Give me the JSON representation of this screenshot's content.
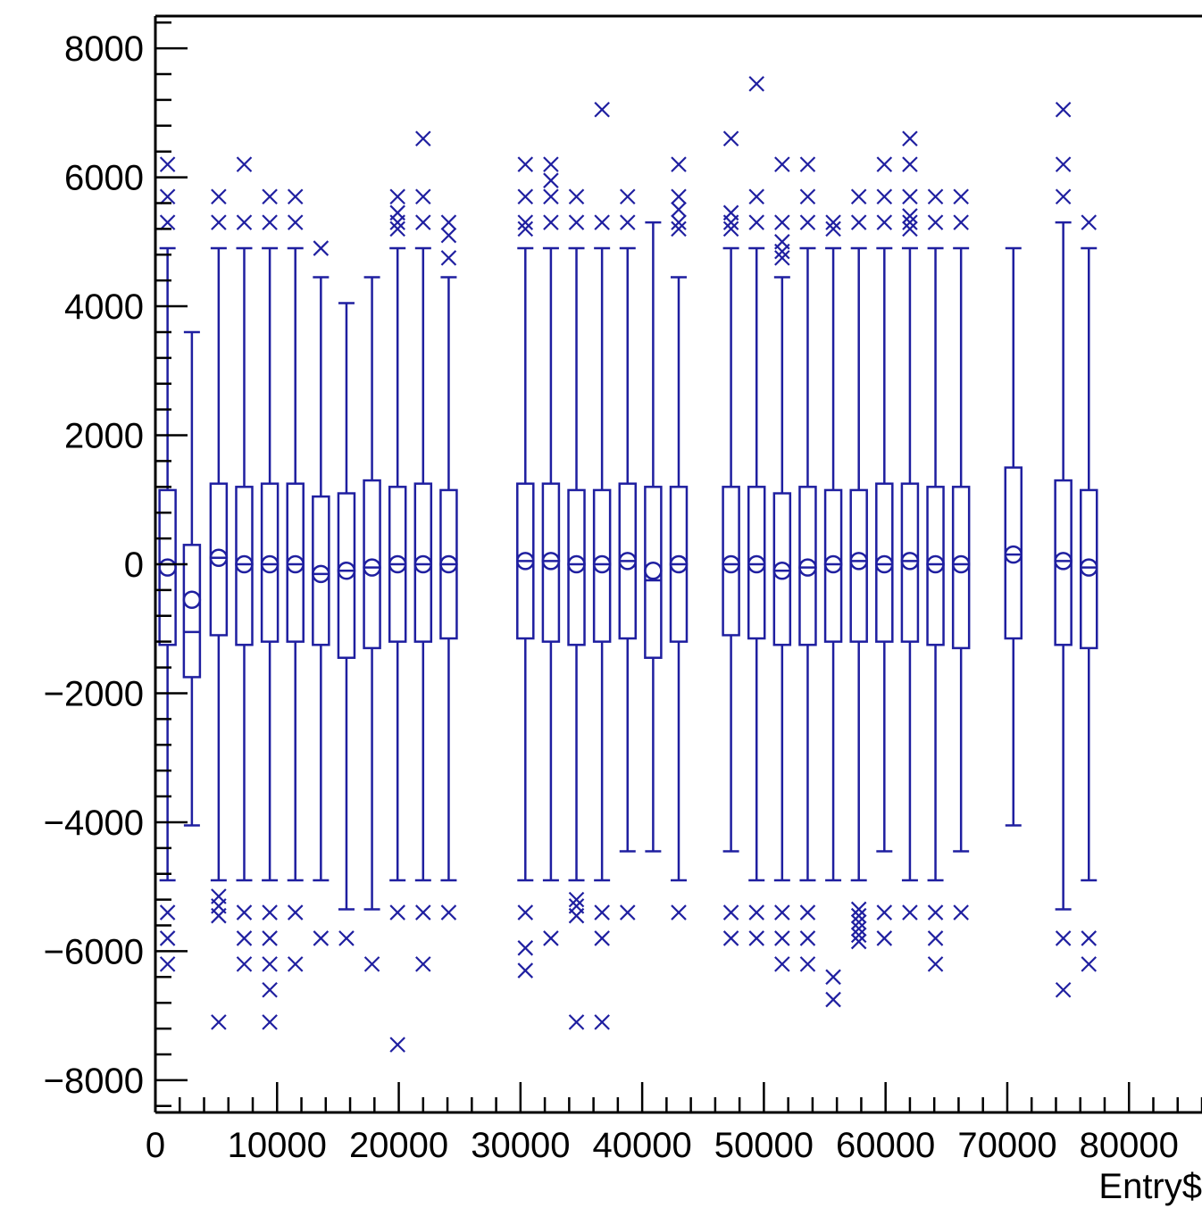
{
  "chart_data": {
    "type": "box",
    "xlabel": "Entry$",
    "ylabel": "",
    "xlim": [
      0,
      86000
    ],
    "ylim": [
      -8500,
      8500
    ],
    "x_ticks": [
      0,
      10000,
      20000,
      30000,
      40000,
      50000,
      60000,
      70000,
      80000
    ],
    "x_tick_labels": [
      "0",
      "10000",
      "20000",
      "30000",
      "40000",
      "50000",
      "60000",
      "70000",
      "80000"
    ],
    "y_ticks": [
      -8000,
      -6000,
      -4000,
      -2000,
      0,
      2000,
      4000,
      6000,
      8000
    ],
    "y_tick_labels": [
      "−8000",
      "−6000",
      "−4000",
      "−2000",
      "0",
      "2000",
      "4000",
      "6000",
      "8000"
    ],
    "grid": false,
    "colors": {
      "series": "#1f1fa0",
      "axis": "#000000",
      "background": "#ffffff"
    },
    "boxes": [
      {
        "x": 1000,
        "q1": -1250,
        "median": 0,
        "q3": 1150,
        "mean": -50,
        "whisker_low": -4900,
        "whisker_high": 4900,
        "outliers": [
          6200,
          5700,
          5300,
          -5400,
          -5800,
          -6200
        ]
      },
      {
        "x": 3000,
        "q1": -1750,
        "median": -1050,
        "q3": 300,
        "mean": -550,
        "whisker_low": -4050,
        "whisker_high": 3600,
        "outliers": []
      },
      {
        "x": 5200,
        "q1": -1100,
        "median": 100,
        "q3": 1250,
        "mean": 100,
        "whisker_low": -4900,
        "whisker_high": 4900,
        "outliers": [
          5700,
          5300,
          -5150,
          -5300,
          -5450,
          -7100
        ]
      },
      {
        "x": 7300,
        "q1": -1250,
        "median": 0,
        "q3": 1200,
        "mean": 0,
        "whisker_low": -4900,
        "whisker_high": 4900,
        "outliers": [
          6200,
          5300,
          -5400,
          -5800,
          -6200
        ]
      },
      {
        "x": 9400,
        "q1": -1200,
        "median": 0,
        "q3": 1250,
        "mean": 0,
        "whisker_low": -4900,
        "whisker_high": 4900,
        "outliers": [
          5700,
          5300,
          -5400,
          -5800,
          -6200,
          -6600,
          -7100
        ]
      },
      {
        "x": 11500,
        "q1": -1200,
        "median": 0,
        "q3": 1250,
        "mean": 0,
        "whisker_low": -4900,
        "whisker_high": 4900,
        "outliers": [
          5700,
          5300,
          -5400,
          -6200
        ]
      },
      {
        "x": 13600,
        "q1": -1250,
        "median": -150,
        "q3": 1050,
        "mean": -150,
        "whisker_low": -4900,
        "whisker_high": 4450,
        "outliers": [
          4900,
          -5800
        ]
      },
      {
        "x": 15700,
        "q1": -1450,
        "median": -100,
        "q3": 1100,
        "mean": -100,
        "whisker_low": -5350,
        "whisker_high": 4050,
        "outliers": [
          -5800
        ]
      },
      {
        "x": 17800,
        "q1": -1300,
        "median": -50,
        "q3": 1300,
        "mean": -50,
        "whisker_low": -5350,
        "whisker_high": 4450,
        "outliers": [
          -6200
        ]
      },
      {
        "x": 19900,
        "q1": -1200,
        "median": 0,
        "q3": 1200,
        "mean": 0,
        "whisker_low": -4900,
        "whisker_high": 4900,
        "outliers": [
          5700,
          5450,
          5300,
          5200,
          -5400,
          -7450
        ]
      },
      {
        "x": 22000,
        "q1": -1200,
        "median": 0,
        "q3": 1250,
        "mean": 0,
        "whisker_low": -4900,
        "whisker_high": 4900,
        "outliers": [
          6600,
          5700,
          5300,
          -5400,
          -6200
        ]
      },
      {
        "x": 24100,
        "q1": -1150,
        "median": 0,
        "q3": 1150,
        "mean": 0,
        "whisker_low": -4900,
        "whisker_high": 4450,
        "outliers": [
          5300,
          5100,
          4750,
          -5400
        ]
      },
      {
        "x": 30400,
        "q1": -1150,
        "median": 50,
        "q3": 1250,
        "mean": 50,
        "whisker_low": -4900,
        "whisker_high": 4900,
        "outliers": [
          6200,
          5700,
          5300,
          5200,
          -5400,
          -5950,
          -6300
        ]
      },
      {
        "x": 32500,
        "q1": -1200,
        "median": 50,
        "q3": 1250,
        "mean": 50,
        "whisker_low": -4900,
        "whisker_high": 4900,
        "outliers": [
          6200,
          5950,
          5700,
          5300,
          -5800
        ]
      },
      {
        "x": 34600,
        "q1": -1250,
        "median": 0,
        "q3": 1150,
        "mean": 0,
        "whisker_low": -4900,
        "whisker_high": 4900,
        "outliers": [
          5700,
          5300,
          -5200,
          -5300,
          -5450,
          -7100
        ]
      },
      {
        "x": 36700,
        "q1": -1200,
        "median": 0,
        "q3": 1150,
        "mean": 0,
        "whisker_low": -4900,
        "whisker_high": 4900,
        "outliers": [
          7050,
          5300,
          -5400,
          -5800,
          -7100
        ]
      },
      {
        "x": 38800,
        "q1": -1150,
        "median": 50,
        "q3": 1250,
        "mean": 50,
        "whisker_low": -4450,
        "whisker_high": 4900,
        "outliers": [
          5700,
          5300,
          -5400
        ]
      },
      {
        "x": 40900,
        "q1": -1450,
        "median": -250,
        "q3": 1200,
        "mean": -100,
        "whisker_low": -4450,
        "whisker_high": 5300,
        "outliers": []
      },
      {
        "x": 43000,
        "q1": -1200,
        "median": 0,
        "q3": 1200,
        "mean": 0,
        "whisker_low": -4900,
        "whisker_high": 4450,
        "outliers": [
          6200,
          5700,
          5500,
          5300,
          5200,
          -5400
        ]
      },
      {
        "x": 47300,
        "q1": -1100,
        "median": 0,
        "q3": 1200,
        "mean": 0,
        "whisker_low": -4450,
        "whisker_high": 4900,
        "outliers": [
          6600,
          5450,
          5300,
          5200,
          -5400,
          -5800
        ]
      },
      {
        "x": 49400,
        "q1": -1150,
        "median": 0,
        "q3": 1200,
        "mean": 0,
        "whisker_low": -4900,
        "whisker_high": 4900,
        "outliers": [
          7450,
          5700,
          5300,
          -5400,
          -5800
        ]
      },
      {
        "x": 51500,
        "q1": -1250,
        "median": -100,
        "q3": 1100,
        "mean": -100,
        "whisker_low": -4900,
        "whisker_high": 4450,
        "outliers": [
          6200,
          5300,
          5000,
          4850,
          4750,
          -5400,
          -5800,
          -6200
        ]
      },
      {
        "x": 53600,
        "q1": -1250,
        "median": -50,
        "q3": 1200,
        "mean": -50,
        "whisker_low": -4900,
        "whisker_high": 4900,
        "outliers": [
          6200,
          5700,
          5300,
          -5400,
          -5800,
          -6200
        ]
      },
      {
        "x": 55700,
        "q1": -1200,
        "median": 0,
        "q3": 1150,
        "mean": 0,
        "whisker_low": -4900,
        "whisker_high": 4900,
        "outliers": [
          5300,
          5200,
          -6400,
          -6750
        ]
      },
      {
        "x": 57800,
        "q1": -1200,
        "median": 50,
        "q3": 1150,
        "mean": 50,
        "whisker_low": -4900,
        "whisker_high": 4900,
        "outliers": [
          5700,
          5300,
          -5350,
          -5450,
          -5550,
          -5650,
          -5750,
          -5850
        ]
      },
      {
        "x": 59900,
        "q1": -1200,
        "median": 0,
        "q3": 1250,
        "mean": 0,
        "whisker_low": -4450,
        "whisker_high": 4900,
        "outliers": [
          6200,
          5700,
          5300,
          -5400,
          -5800
        ]
      },
      {
        "x": 62000,
        "q1": -1200,
        "median": 50,
        "q3": 1250,
        "mean": 50,
        "whisker_low": -4900,
        "whisker_high": 4900,
        "outliers": [
          6600,
          6200,
          5700,
          5400,
          5300,
          5200,
          -5400
        ]
      },
      {
        "x": 64100,
        "q1": -1250,
        "median": 0,
        "q3": 1200,
        "mean": 0,
        "whisker_low": -4900,
        "whisker_high": 4900,
        "outliers": [
          5700,
          5300,
          -5400,
          -5800,
          -6200
        ]
      },
      {
        "x": 66200,
        "q1": -1300,
        "median": 0,
        "q3": 1200,
        "mean": 0,
        "whisker_low": -4450,
        "whisker_high": 4900,
        "outliers": [
          5700,
          5300,
          -5400
        ]
      },
      {
        "x": 70500,
        "q1": -1150,
        "median": 150,
        "q3": 1500,
        "mean": 150,
        "whisker_low": -4050,
        "whisker_high": 4900,
        "outliers": []
      },
      {
        "x": 74600,
        "q1": -1250,
        "median": 50,
        "q3": 1300,
        "mean": 50,
        "whisker_low": -5350,
        "whisker_high": 5300,
        "outliers": [
          7050,
          6200,
          5700,
          -5800,
          -6600
        ]
      },
      {
        "x": 76700,
        "q1": -1300,
        "median": -50,
        "q3": 1150,
        "mean": -50,
        "whisker_low": -4900,
        "whisker_high": 4900,
        "outliers": [
          5300,
          -5800,
          -6200
        ]
      }
    ]
  }
}
